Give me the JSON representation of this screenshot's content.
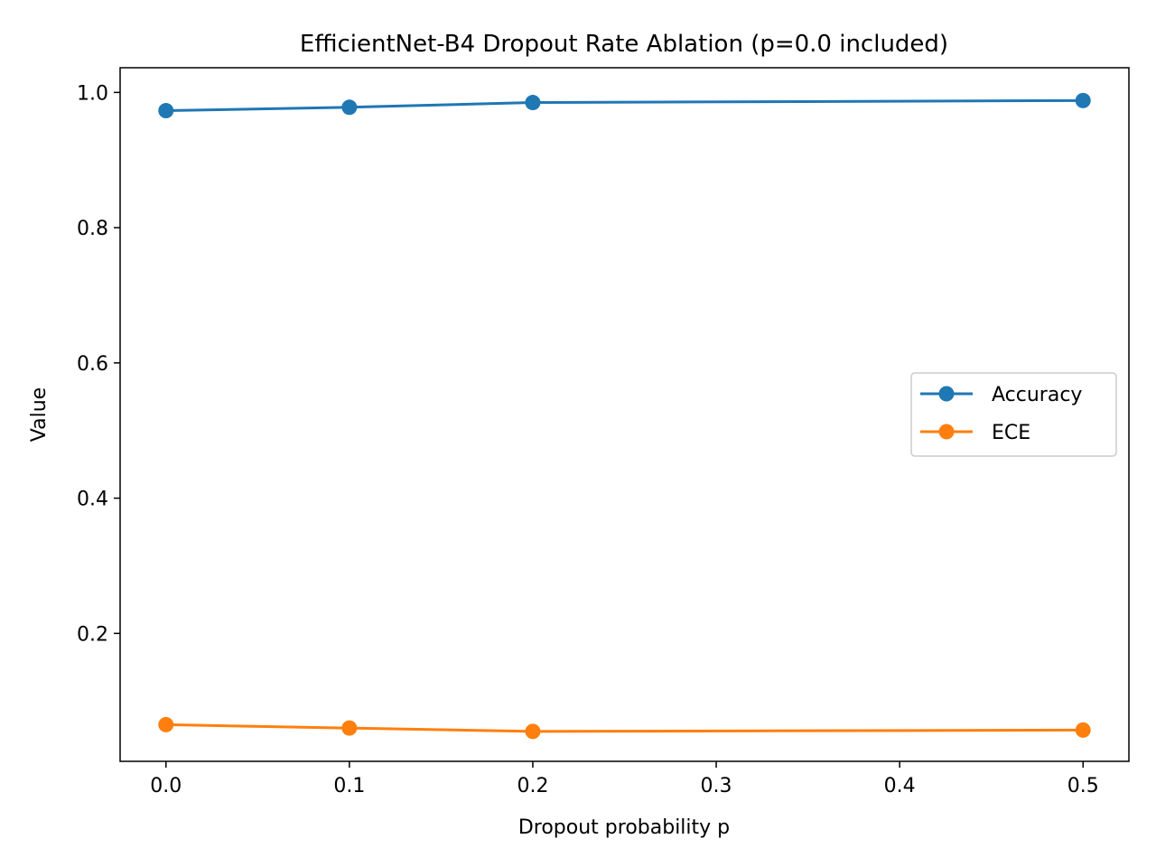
{
  "chart_data": {
    "type": "line",
    "title": "EfficientNet-B4 Dropout Rate Ablation (p=0.0 included)",
    "xlabel": "Dropout probability p",
    "ylabel": "Value",
    "x": [
      0.0,
      0.1,
      0.2,
      0.5
    ],
    "xlim": [
      -0.025,
      0.525
    ],
    "ylim": [
      0.0108,
      1.0365
    ],
    "xticks": [
      0.0,
      0.1,
      0.2,
      0.3,
      0.4,
      0.5
    ],
    "xtick_labels": [
      "0.0",
      "0.1",
      "0.2",
      "0.3",
      "0.4",
      "0.5"
    ],
    "yticks": [
      0.2,
      0.4,
      0.6,
      0.8,
      1.0
    ],
    "ytick_labels": [
      "0.2",
      "0.4",
      "0.6",
      "0.8",
      "1.0"
    ],
    "grid": false,
    "legend_position": "center-right",
    "series": [
      {
        "name": "Accuracy",
        "color": "#1f77b4",
        "marker": "circle",
        "values": [
          0.973,
          0.978,
          0.985,
          0.988
        ]
      },
      {
        "name": "ECE",
        "color": "#ff7f0e",
        "marker": "circle",
        "values": [
          0.065,
          0.06,
          0.055,
          0.057
        ]
      }
    ]
  }
}
